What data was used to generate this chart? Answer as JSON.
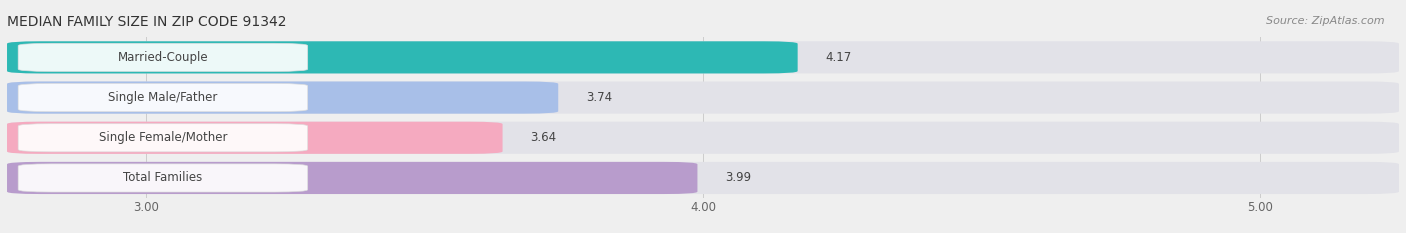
{
  "title": "MEDIAN FAMILY SIZE IN ZIP CODE 91342",
  "source": "Source: ZipAtlas.com",
  "categories": [
    "Married-Couple",
    "Single Male/Father",
    "Single Female/Mother",
    "Total Families"
  ],
  "values": [
    4.17,
    3.74,
    3.64,
    3.99
  ],
  "bar_colors": [
    "#2db8b4",
    "#a8bfe8",
    "#f5aac0",
    "#b89ccc"
  ],
  "label_bg_colors": [
    "#e8fafa",
    "#dde8f8",
    "#fce4ec",
    "#ede8f8"
  ],
  "xlim": [
    2.75,
    5.25
  ],
  "xticks": [
    3.0,
    4.0,
    5.0
  ],
  "xtick_labels": [
    "3.00",
    "4.00",
    "5.00"
  ],
  "value_fontsize": 8.5,
  "label_fontsize": 8.5,
  "title_fontsize": 10,
  "source_fontsize": 8,
  "background_color": "#efefef",
  "bar_bg_color": "#e2e2e8",
  "bar_gap": 0.06,
  "text_color": "#444444",
  "grid_color": "#cccccc",
  "source_color": "#888888"
}
